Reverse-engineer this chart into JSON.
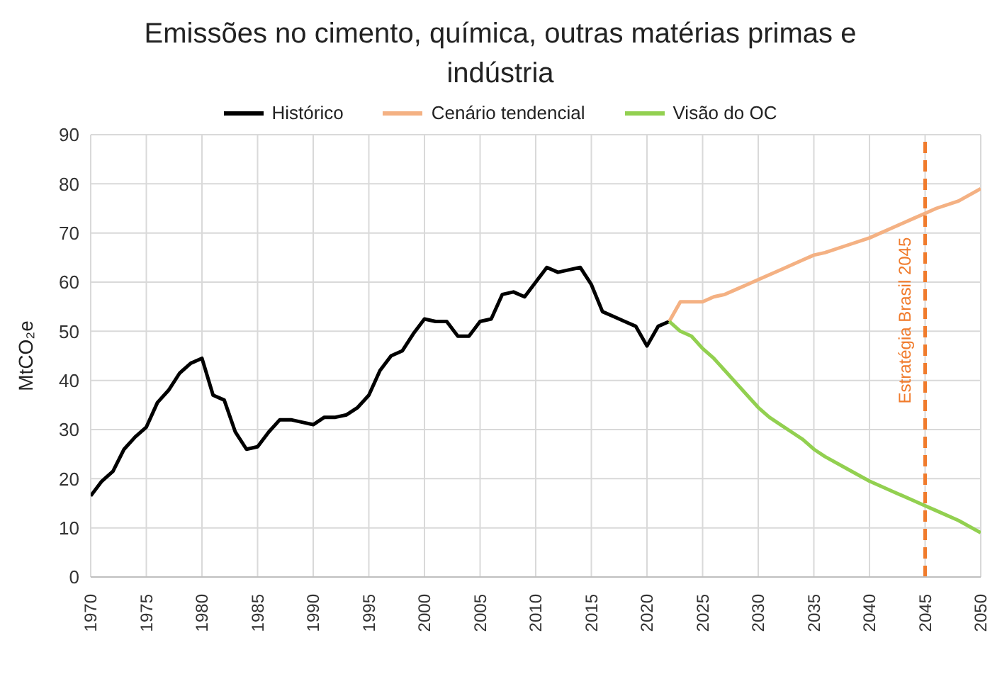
{
  "chart_data": {
    "type": "line",
    "title": "Emissões no cimento, química, outras matérias primas e indústria",
    "ylabel": "MtCO₂e",
    "xlim": [
      1970,
      2050
    ],
    "xticks": [
      1970,
      1975,
      1980,
      1985,
      1990,
      1995,
      2000,
      2005,
      2010,
      2015,
      2020,
      2025,
      2030,
      2035,
      2040,
      2045,
      2050
    ],
    "ylim": [
      0,
      90
    ],
    "yticks": [
      0,
      10,
      20,
      30,
      40,
      50,
      60,
      70,
      80,
      90
    ],
    "grid": true,
    "legend": "top",
    "marker": "none",
    "line_style": "solid",
    "series": [
      {
        "name": "Histórico",
        "color": "#000000",
        "x": [
          1970,
          1971,
          1972,
          1973,
          1974,
          1975,
          1976,
          1977,
          1978,
          1979,
          1980,
          1981,
          1982,
          1983,
          1984,
          1985,
          1986,
          1987,
          1988,
          1989,
          1990,
          1991,
          1992,
          1993,
          1994,
          1995,
          1996,
          1997,
          1998,
          1999,
          2000,
          2001,
          2002,
          2003,
          2004,
          2005,
          2006,
          2007,
          2008,
          2009,
          2010,
          2011,
          2012,
          2013,
          2014,
          2015,
          2016,
          2017,
          2018,
          2019,
          2020,
          2021,
          2022
        ],
        "values": [
          16.5,
          19.5,
          21.5,
          26,
          28.5,
          30.5,
          35.5,
          38,
          41.5,
          43.5,
          44.5,
          37,
          36,
          29.5,
          26,
          26.5,
          29.5,
          32,
          32,
          31.5,
          31,
          32.5,
          32.5,
          33,
          34.5,
          37,
          42,
          45,
          46,
          49.5,
          52.5,
          52,
          52,
          49,
          49,
          52,
          52.5,
          57.5,
          58,
          57,
          60,
          63,
          62,
          62.5,
          63,
          59.5,
          54,
          53,
          52,
          51,
          47,
          51,
          52
        ]
      },
      {
        "name": "Cenário tendencial",
        "color": "#f4b183",
        "x": [
          2022,
          2023,
          2024,
          2025,
          2026,
          2027,
          2028,
          2029,
          2030,
          2032,
          2034,
          2035,
          2036,
          2038,
          2040,
          2042,
          2044,
          2045,
          2046,
          2048,
          2050
        ],
        "values": [
          52,
          56,
          56,
          56,
          57,
          57.5,
          58.5,
          59.5,
          60.5,
          62.5,
          64.5,
          65.5,
          66,
          67.5,
          69,
          71,
          73,
          74,
          75,
          76.5,
          79
        ]
      },
      {
        "name": "Visão do OC",
        "color": "#92d050",
        "x": [
          2022,
          2023,
          2024,
          2025,
          2026,
          2027,
          2028,
          2029,
          2030,
          2031,
          2032,
          2033,
          2034,
          2035,
          2036,
          2038,
          2040,
          2042,
          2044,
          2045,
          2046,
          2048,
          2050
        ],
        "values": [
          52,
          50,
          49,
          46.5,
          44.5,
          42,
          39.5,
          37,
          34.5,
          32.5,
          31,
          29.5,
          28,
          26,
          24.5,
          22,
          19.5,
          17.5,
          15.5,
          14.5,
          13.5,
          11.5,
          9
        ]
      }
    ],
    "ref_lines": [
      {
        "axis": "x",
        "value": 2045,
        "label": "Estratégia Brasil 2045",
        "color": "#f07b2c",
        "line_style": "dashed"
      }
    ]
  }
}
